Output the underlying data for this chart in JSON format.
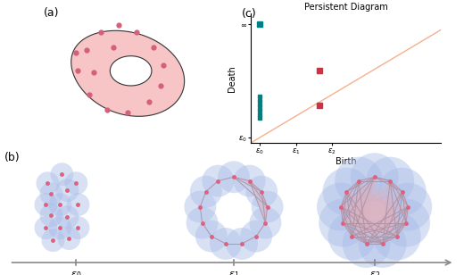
{
  "fig_width": 5.2,
  "fig_height": 3.08,
  "dpi": 100,
  "background": "#ffffff",
  "panel_a_label": "(a)",
  "panel_b_label": "(b)",
  "panel_c_label": "(c)",
  "torus_fill": "#f7c5c5",
  "torus_edge": "#333333",
  "torus_dot_color": "#d4607a",
  "circle_fill": "#aabde8",
  "circle_alpha": 0.45,
  "node_color": "#e06080",
  "edge_color": "#b090a0",
  "triangle_fill": "#d8b0c0",
  "triangle_alpha": 0.4,
  "pd_bg": "#ffffff",
  "pd_title": "Persistent Diagram",
  "pd_diag_color": "#f09060",
  "pd_teal_color": "#008080",
  "pd_red_color": "#cc3344",
  "pd_xlabel": "Birth",
  "pd_ylabel": "Death",
  "timeline_color": "#888888"
}
